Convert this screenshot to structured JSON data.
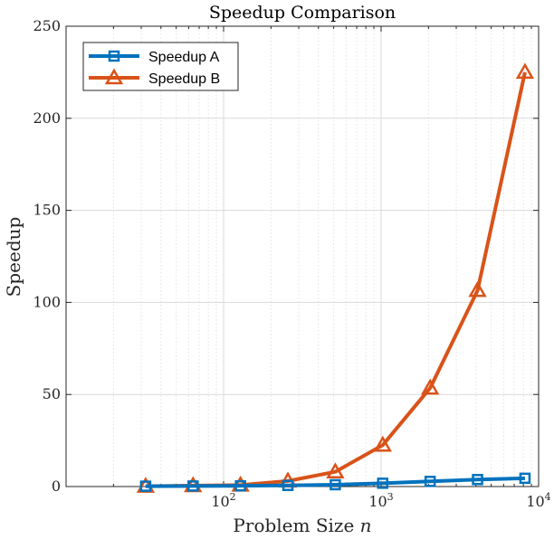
{
  "chart_data": {
    "type": "line",
    "title": "Speedup Comparison",
    "xlabel": "Problem Size",
    "xlabel_var": "n",
    "ylabel": "Speedup",
    "x_scale": "log",
    "xlim": [
      10,
      10000
    ],
    "ylim": [
      0,
      250
    ],
    "x_ticks": [
      {
        "value": 100,
        "base": "10",
        "exp": "2"
      },
      {
        "value": 1000,
        "base": "10",
        "exp": "3"
      },
      {
        "value": 10000,
        "base": "10",
        "exp": "4"
      }
    ],
    "y_ticks": [
      0,
      50,
      100,
      150,
      200,
      250
    ],
    "grid": true,
    "legend_position": "top-left",
    "x": [
      32,
      64,
      128,
      256,
      512,
      1024,
      2048,
      4096,
      8192
    ],
    "series": [
      {
        "name": "Speedup A",
        "color": "#0072BD",
        "marker": "square",
        "values": [
          0.2,
          0.3,
          0.4,
          0.6,
          1.0,
          1.8,
          2.8,
          3.8,
          4.5
        ]
      },
      {
        "name": "Speedup B",
        "color": "#D95319",
        "marker": "triangle",
        "values": [
          0.2,
          0.5,
          0.8,
          3.0,
          8.0,
          22.5,
          53.5,
          106.5,
          225.0
        ]
      }
    ]
  }
}
